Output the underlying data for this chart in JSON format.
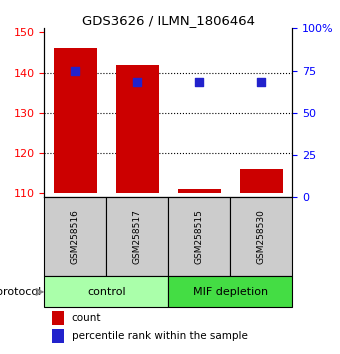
{
  "title": "GDS3626 / ILMN_1806464",
  "samples": [
    "GSM258516",
    "GSM258517",
    "GSM258515",
    "GSM258530"
  ],
  "bar_values": [
    146.0,
    142.0,
    111.0,
    116.0
  ],
  "percentile_values": [
    75,
    68,
    68,
    68
  ],
  "bar_color": "#cc0000",
  "dot_color": "#2222cc",
  "ylim_left": [
    109,
    151
  ],
  "ylim_right": [
    0,
    100
  ],
  "yticks_left": [
    110,
    120,
    130,
    140,
    150
  ],
  "yticks_right": [
    0,
    25,
    50,
    75,
    100
  ],
  "ytick_labels_right": [
    "0",
    "25",
    "50",
    "75",
    "100%"
  ],
  "groups": [
    {
      "label": "control",
      "indices": [
        0,
        1
      ],
      "color": "#aaffaa"
    },
    {
      "label": "MIF depletion",
      "indices": [
        2,
        3
      ],
      "color": "#44dd44"
    }
  ],
  "protocol_label": "protocol",
  "legend_count_label": "count",
  "legend_pct_label": "percentile rank within the sample",
  "bar_bottom": 110,
  "bar_width": 0.7
}
